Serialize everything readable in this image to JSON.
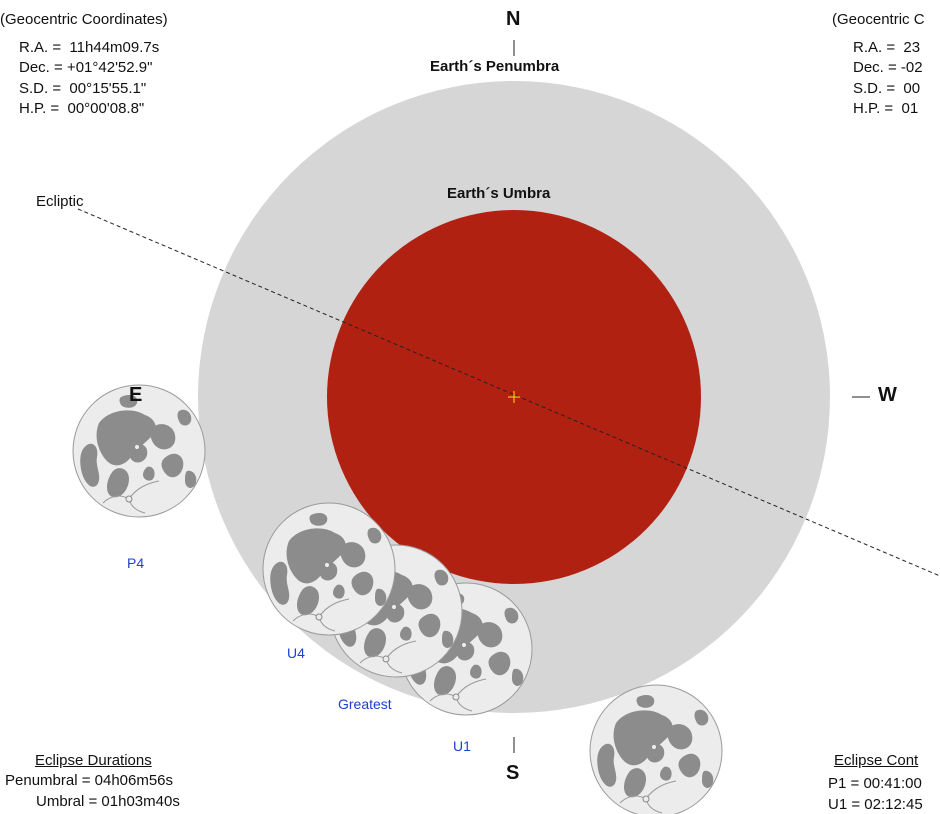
{
  "left_panel": {
    "subtitle": "(Geocentric Coordinates)",
    "ra": "R.A. =  11h44m09.7s",
    "dec": "Dec. = +01°42'52.9\"",
    "sd": "S.D. =  00°15'55.1\"",
    "hp": "H.P. =  00°00'08.8\""
  },
  "right_panel": {
    "subtitle": "(Geocentric C",
    "ra": "R.A. =  23",
    "dec": "Dec. = -02",
    "sd": "S.D. =  00",
    "hp": "H.P. =  01"
  },
  "directions": {
    "north": "N",
    "south": "S",
    "east": "E",
    "west": "W"
  },
  "labels": {
    "penumbra": "Earth´s Penumbra",
    "umbra": "Earth´s Umbra",
    "ecliptic": "Ecliptic"
  },
  "contacts": {
    "p4": "P4",
    "u4": "U4",
    "greatest": "Greatest",
    "u1": "U1"
  },
  "durations": {
    "title": "Eclipse Durations",
    "penumbral": "Penumbral = 04h06m56s",
    "umbral": "Umbral = 01h03m40s"
  },
  "contacts_panel": {
    "title": "Eclipse Cont",
    "p1": "P1 = 00:41:00",
    "u1": "U1 = 02:12:45"
  },
  "colors": {
    "penumbra": "#d6d6d6",
    "umbra": "#b02112",
    "moon_face": "#ececec",
    "maria": "#8c8c8c",
    "center_mark": "#f5c400",
    "contact_label": "#1f3fcf"
  },
  "icons": {
    "moon": "moon-disk-icon",
    "center": "shadow-center-cross-icon"
  }
}
